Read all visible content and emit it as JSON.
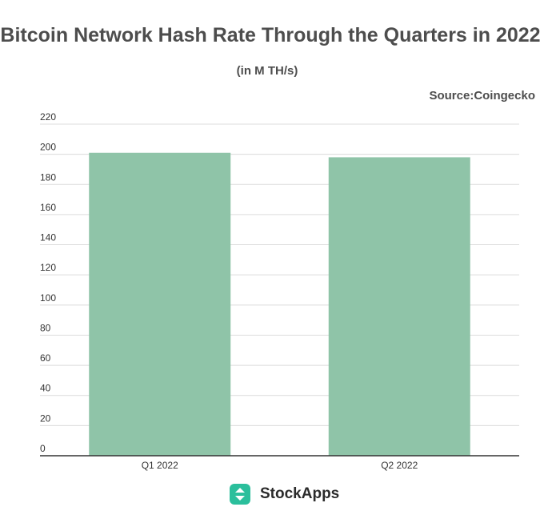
{
  "chart_data": {
    "type": "bar",
    "title": "Bitcoin Network Hash Rate Through the Quarters in 2022",
    "subtitle": "(in M TH/s)",
    "source": "Source:Coingecko",
    "categories": [
      "Q1 2022",
      "Q2 2022"
    ],
    "values": [
      201,
      198
    ],
    "ylim": [
      0,
      220
    ],
    "yticks": [
      0,
      20,
      40,
      60,
      80,
      100,
      120,
      140,
      160,
      180,
      200,
      220
    ],
    "grid": true,
    "bar_color": "#8fc4a8"
  },
  "brand": {
    "name": "StockApps",
    "icon": "stockapps-logo-icon",
    "color": "#2bbf9c"
  }
}
